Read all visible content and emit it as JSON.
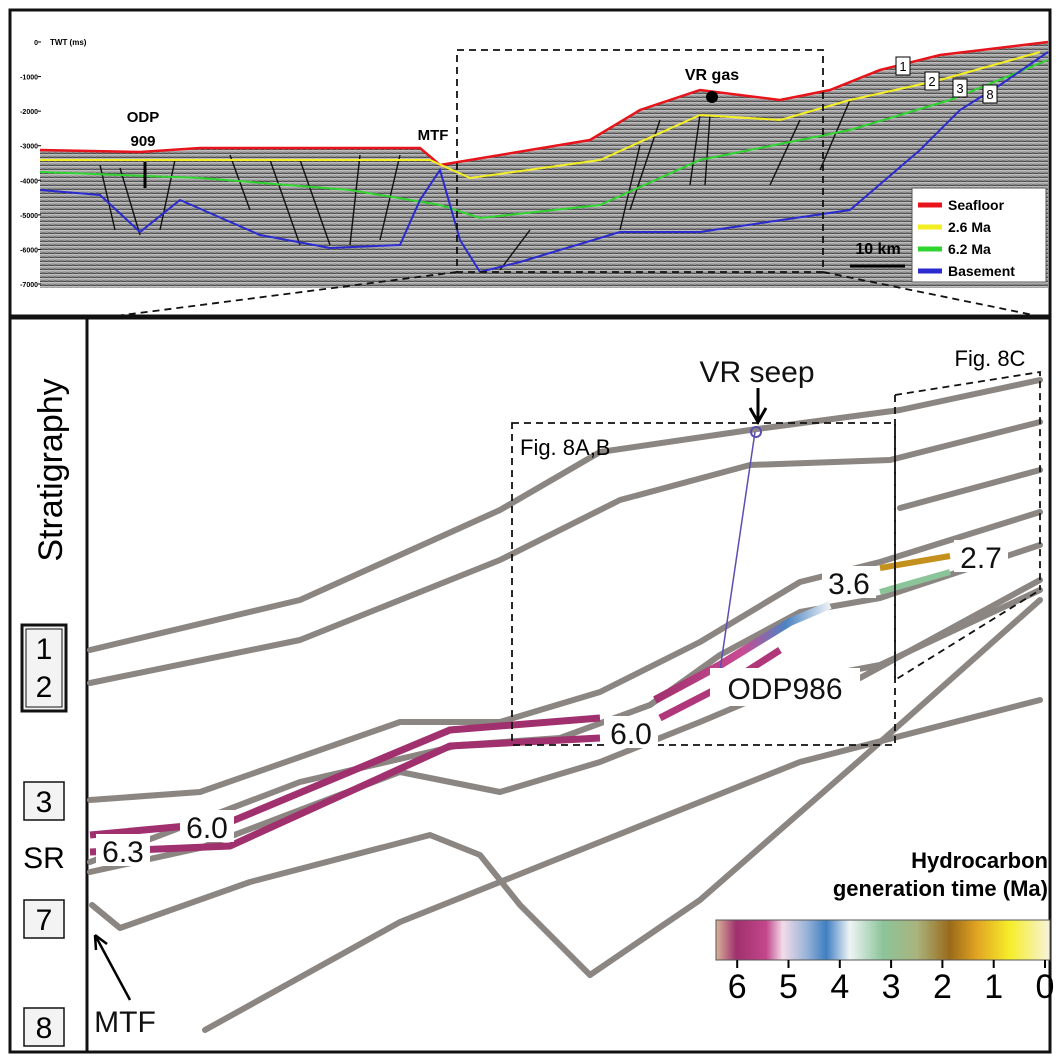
{
  "top_panel": {
    "axis_title": "TWT (ms)",
    "depth_ticks": [
      0,
      -1000,
      -2000,
      -3000,
      -4000,
      -5000,
      -6000,
      -7000
    ],
    "well_label": [
      "ODP",
      "909"
    ],
    "mtf": "MTF",
    "vr_gas": "VR gas",
    "horizon_markers": [
      "1",
      "2",
      "3",
      "8"
    ],
    "legend": [
      {
        "name": "Seafloor",
        "color": "#e8141b"
      },
      {
        "name": "2.6 Ma",
        "color": "#f2ee22"
      },
      {
        "name": "6.2 Ma",
        "color": "#2fd42f"
      },
      {
        "name": "Basement",
        "color": "#2b2bd0"
      }
    ],
    "scale_bar": "10 km"
  },
  "bottom_panel": {
    "stratigraphy_title": "Stratigraphy",
    "units": [
      "1",
      "2",
      "3",
      "SR",
      "7",
      "8"
    ],
    "vr_seep": "VR seep",
    "fig_8c": "Fig. 8C",
    "fig_8ab": "Fig. 8A,B",
    "odp986": "ODP986",
    "mtf": "MTF",
    "ages": [
      "6.3",
      "6.0",
      "6.0",
      "3.6",
      "2.7"
    ],
    "colorbar": {
      "title": [
        "Hydrocarbon",
        "generation time (Ma)"
      ],
      "ticks": [
        6,
        5,
        4,
        3,
        2,
        1,
        0
      ]
    }
  }
}
